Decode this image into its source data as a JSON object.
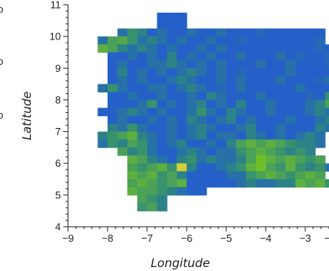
{
  "chart_data": {
    "type": "heatmap",
    "xlabel": "Longitude",
    "ylabel": "Latitude",
    "xlim": [
      -9,
      -2.4
    ],
    "ylim": [
      4,
      11
    ],
    "xticks": [
      -9,
      -8,
      -7,
      -6,
      -5,
      -4,
      -3
    ],
    "yticks": [
      4,
      5,
      6,
      7,
      8,
      9,
      10,
      11
    ],
    "x_tick_labels": [
      "−9",
      "−8",
      "−7",
      "−6",
      "−5",
      "−4",
      "−3"
    ],
    "y_tick_labels": [
      "4",
      "5",
      "6",
      "7",
      "8",
      "9",
      "10",
      "11"
    ],
    "x_label_overflow": "−",
    "y_label_overflow_marks": [
      "o",
      "o",
      "o"
    ],
    "grid": false,
    "legend": "none",
    "cell_size_deg": 0.25,
    "colormap": {
      "low": "#1f4fe6",
      "mid": "#2f8a78",
      "high_green": "#6fbf2a",
      "peak": "#e8d13a"
    },
    "rows": [
      {
        "lat": 10.625,
        "lon_start": -6.625,
        "levels": [
          0.1,
          0.1,
          0.1
        ]
      },
      {
        "lat": 10.375,
        "lon_start": -6.625,
        "levels": [
          0.1,
          0.1,
          0.1
        ]
      },
      {
        "lat": 10.125,
        "lon_start": -7.625,
        "levels": [
          0.2,
          0.4,
          0.3,
          0.1,
          0.2,
          0.1,
          0.1,
          0.2,
          0.1,
          0.1,
          0.2,
          0.1,
          0.1,
          0.1,
          0.15,
          0.1,
          0.1,
          0.1,
          0.1,
          0.1,
          0.1
        ]
      },
      {
        "lat": 9.875,
        "lon_start": -8.125,
        "levels": [
          0.2,
          0.5,
          0.55,
          0.4,
          0.2,
          0.3,
          0.2,
          0.1,
          0.2,
          0.1,
          0.1,
          0.2,
          0.1,
          0.1,
          0.15,
          0.1,
          0.1,
          0.1,
          0.1,
          0.1,
          0.1,
          0.1,
          0.15
        ]
      },
      {
        "lat": 9.625,
        "lon_start": -8.125,
        "levels": [
          0.6,
          0.5,
          0.3,
          0.2,
          0.3,
          0.2,
          0.1,
          0.2,
          0.1,
          0.1,
          0.2,
          0.1,
          0.2,
          0.1,
          0.1,
          0.1,
          0.1,
          0.1,
          0.1,
          0.1,
          0.1,
          0.1,
          0.15,
          0.1
        ]
      },
      {
        "lat": 9.375,
        "lon_start": -7.875,
        "levels": [
          0.1,
          0.1,
          0.2,
          0.1,
          0.2,
          0.1,
          0.3,
          0.1,
          0.2,
          0.1,
          0.2,
          0.1,
          0.1,
          0.2,
          0.1,
          0.1,
          0.1,
          0.2,
          0.1,
          0.15,
          0.1,
          0.1,
          0.15,
          0.1
        ]
      },
      {
        "lat": 9.125,
        "lon_start": -7.875,
        "levels": [
          0.1,
          0.2,
          0.1,
          0.1,
          0.2,
          0.2,
          0.3,
          0.2,
          0.1,
          0.2,
          0.1,
          0.2,
          0.1,
          0.1,
          0.1,
          0.2,
          0.1,
          0.1,
          0.2,
          0.1,
          0.1,
          0.1,
          0.15,
          0.1,
          0.1
        ]
      },
      {
        "lat": 8.875,
        "lon_start": -7.875,
        "levels": [
          0.1,
          0.3,
          0.1,
          0.2,
          0.1,
          0.2,
          0.1,
          0.2,
          0.3,
          0.2,
          0.1,
          0.2,
          0.1,
          0.15,
          0.1,
          0.1,
          0.1,
          0.1,
          0.2,
          0.1,
          0.1,
          0.1,
          0.1,
          0.1,
          0.2
        ]
      },
      {
        "lat": 8.625,
        "lon_start": -7.875,
        "levels": [
          0.1,
          0.2,
          0.1,
          0.2,
          0.1,
          0.1,
          0.2,
          0.3,
          0.2,
          0.1,
          0.1,
          0.2,
          0.1,
          0.2,
          0.1,
          0.1,
          0.1,
          0.2,
          0.1,
          0.1,
          0.1,
          0.15,
          0.2,
          0.3
        ]
      },
      {
        "lat": 8.375,
        "lon_start": -8.125,
        "levels": [
          0.2,
          0.4,
          0.2,
          0.1,
          0.1,
          0.2,
          0.2,
          0.1,
          0.2,
          0.3,
          0.2,
          0.1,
          0.15,
          0.1,
          0.2,
          0.1,
          0.1,
          0.1,
          0.1,
          0.1,
          0.2,
          0.1,
          0.1,
          0.1,
          0.2
        ]
      },
      {
        "lat": 8.125,
        "lon_start": -7.875,
        "levels": [
          0.1,
          0.1,
          0.2,
          0.1,
          0.1,
          0.2,
          0.1,
          0.1,
          0.2,
          0.1,
          0.3,
          0.2,
          0.1,
          0.1,
          0.1,
          0.2,
          0.1,
          0.1,
          0.1,
          0.1,
          0.15,
          0.1,
          0.4,
          0.5
        ]
      },
      {
        "lat": 7.875,
        "lon_start": -7.875,
        "levels": [
          0.1,
          0.1,
          0.1,
          0.2,
          0.4,
          0.1,
          0.2,
          0.1,
          0.2,
          0.3,
          0.1,
          0.2,
          0.1,
          0.3,
          0.1,
          0.1,
          0.2,
          0.1,
          0.1,
          0.1,
          0.2,
          0.3,
          0.5,
          0.3
        ]
      },
      {
        "lat": 7.625,
        "lon_start": -8.125,
        "levels": [
          0.1,
          0.1,
          0.2,
          0.3,
          0.2,
          0.1,
          0.2,
          0.1,
          0.1,
          0.2,
          0.4,
          0.2,
          0.1,
          0.3,
          0.2,
          0.1,
          0.1,
          0.2,
          0.1,
          0.1,
          0.1,
          0.2,
          0.3,
          0.2,
          0.15
        ]
      },
      {
        "lat": 7.375,
        "lon_start": -7.875,
        "levels": [
          0.1,
          0.2,
          0.1,
          0.1,
          0.2,
          0.1,
          0.2,
          0.1,
          0.3,
          0.2,
          0.1,
          0.2,
          0.3,
          0.1,
          0.2,
          0.1,
          0.1,
          0.1,
          0.2,
          0.1,
          0.1,
          0.2,
          0.3,
          0.1
        ]
      },
      {
        "lat": 7.125,
        "lon_start": -7.875,
        "levels": [
          0.3,
          0.2,
          0.4,
          0.2,
          0.1,
          0.1,
          0.2,
          0.1,
          0.2,
          0.3,
          0.2,
          0.1,
          0.1,
          0.2,
          0.3,
          0.1,
          0.1,
          0.2,
          0.1,
          0.1,
          0.1,
          0.3,
          0.2
        ]
      },
      {
        "lat": 6.875,
        "lon_start": -8.125,
        "levels": [
          0.3,
          0.4,
          0.5,
          0.6,
          0.3,
          0.2,
          0.1,
          0.2,
          0.1,
          0.2,
          0.3,
          0.1,
          0.2,
          0.2,
          0.1,
          0.3,
          0.2,
          0.1,
          0.2,
          0.1,
          0.2,
          0.3,
          0.2
        ]
      },
      {
        "lat": 6.625,
        "lon_start": -8.125,
        "levels": [
          0.2,
          0.4,
          0.3,
          0.5,
          0.4,
          0.2,
          0.1,
          0.2,
          0.3,
          0.1,
          0.1,
          0.2,
          0.1,
          0.3,
          0.5,
          0.6,
          0.5,
          0.6,
          0.5,
          0.4,
          0.3,
          0.3,
          0.2
        ]
      },
      {
        "lat": 6.375,
        "lon_start": -7.625,
        "levels": [
          0.5,
          0.3,
          0.4,
          0.2,
          0.1,
          0.1,
          0.2,
          0.3,
          0.2,
          0.1,
          0.2,
          0.2,
          0.4,
          0.5,
          0.6,
          0.5,
          0.4,
          0.3,
          0.4,
          0.3
        ]
      },
      {
        "lat": 6.125,
        "lon_start": -7.375,
        "levels": [
          0.6,
          0.5,
          0.3,
          0.2,
          0.1,
          0.3,
          0.4,
          0.2,
          0.3,
          0.2,
          0.2,
          0.3,
          0.5,
          0.7,
          0.6,
          0.5,
          0.6,
          0.5,
          0.4,
          0.5
        ]
      },
      {
        "lat": 5.875,
        "lon_start": -7.375,
        "levels": [
          0.5,
          0.4,
          0.5,
          0.6,
          0.4,
          0.95,
          0.3,
          0.1,
          0.1,
          0.2,
          0.3,
          0.4,
          0.6,
          0.7,
          0.5,
          0.4,
          0.6,
          0.4,
          0.3,
          0.4,
          0.2
        ]
      },
      {
        "lat": 5.625,
        "lon_start": -7.375,
        "levels": [
          0.6,
          0.5,
          0.6,
          0.4,
          0.5,
          0.3,
          0.1,
          0.1,
          0.1,
          0.1,
          0.2,
          0.2,
          0.4,
          0.5,
          0.6,
          0.5,
          0.4,
          0.5,
          0.6,
          0.5
        ]
      },
      {
        "lat": 5.375,
        "lon_start": -7.375,
        "levels": [
          0.5,
          0.6,
          0.5,
          0.4,
          0.5,
          0.6,
          0.1,
          0.1,
          0.1,
          0.1,
          0.1,
          0.2,
          0.3,
          0.2,
          0.2,
          0.3,
          0.3,
          0.6,
          0.5,
          0.6,
          0.4
        ]
      },
      {
        "lat": 5.125,
        "lon_start": -7.375,
        "levels": [
          0.6,
          0.5,
          0.5,
          0.4,
          0.3,
          0.2,
          0.1,
          0.1
        ]
      },
      {
        "lat": 4.875,
        "lon_start": -7.125,
        "levels": [
          0.5,
          0.4,
          0.3
        ]
      },
      {
        "lat": 4.625,
        "lon_start": -7.125,
        "levels": [
          0.4,
          0.5,
          0.3
        ]
      }
    ]
  }
}
